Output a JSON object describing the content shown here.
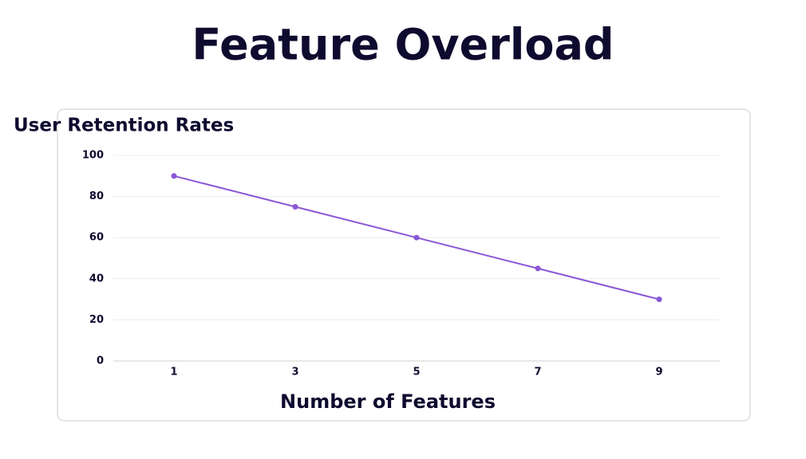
{
  "page_title": "Feature Overload",
  "chart_data": {
    "type": "line",
    "title": "User Retention Rates",
    "x_label": "Number of Features",
    "x": [
      1,
      3,
      5,
      7,
      9
    ],
    "values": [
      90,
      75,
      60,
      45,
      30
    ],
    "color": "#8a57d6",
    "xlim": [
      0,
      10
    ],
    "xticks": [
      1,
      3,
      5,
      7,
      9
    ],
    "ylim": [
      0,
      100
    ],
    "yticks": [
      0,
      20,
      40,
      60,
      80,
      100
    ],
    "grid": true
  }
}
